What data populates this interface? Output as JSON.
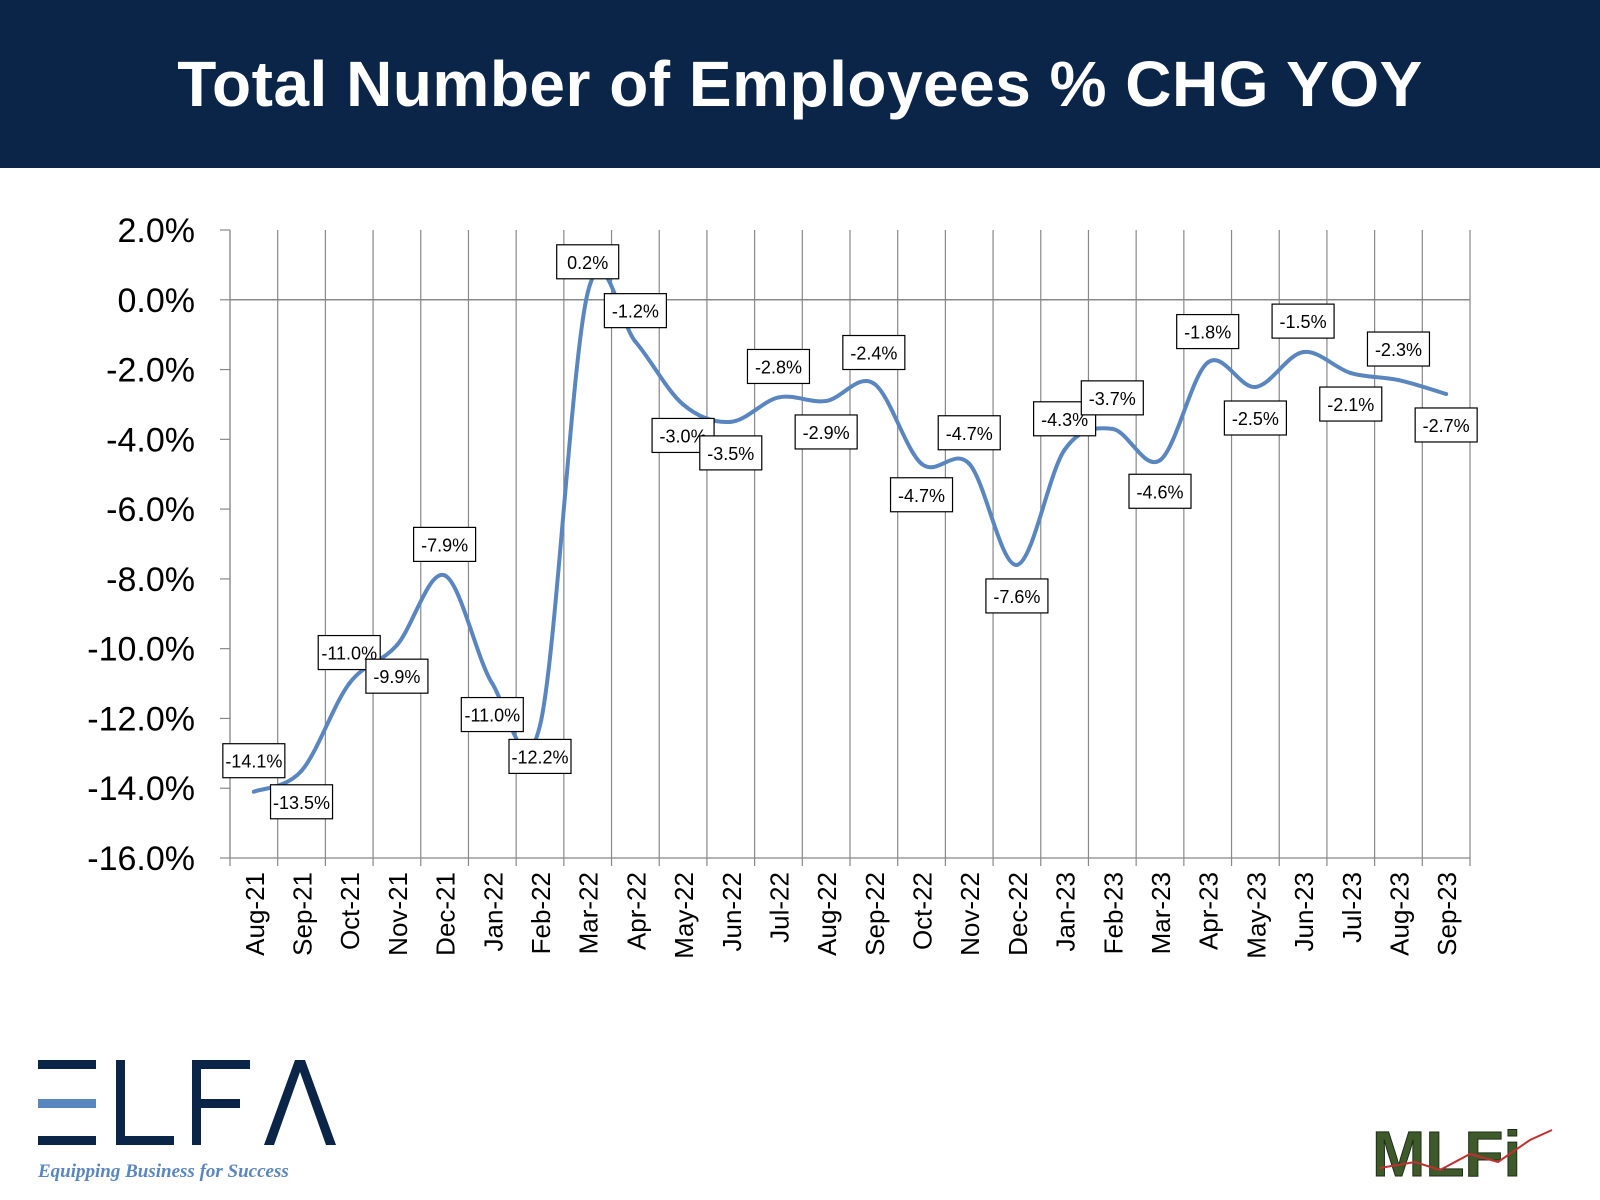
{
  "header": {
    "title": "Total Number of Employees % CHG YOY"
  },
  "chart_data": {
    "type": "line",
    "title": "Total Number of Employees % CHG YOY",
    "xlabel": "",
    "ylabel": "",
    "ylim": [
      -16.0,
      2.0
    ],
    "yticks": [
      "2.0%",
      "0.0%",
      "-2.0%",
      "-4.0%",
      "-6.0%",
      "-8.0%",
      "-10.0%",
      "-12.0%",
      "-14.0%",
      "-16.0%"
    ],
    "categories": [
      "Aug-21",
      "Sep-21",
      "Oct-21",
      "Nov-21",
      "Dec-21",
      "Jan-22",
      "Feb-22",
      "Mar-22",
      "Apr-22",
      "May-22",
      "Jun-22",
      "Jul-22",
      "Aug-22",
      "Sep-22",
      "Oct-22",
      "Nov-22",
      "Dec-22",
      "Jan-23",
      "Feb-23",
      "Mar-23",
      "Apr-23",
      "May-23",
      "Jun-23",
      "Jul-23",
      "Aug-23",
      "Sep-23"
    ],
    "values": [
      -14.1,
      -13.5,
      -11.0,
      -9.9,
      -7.9,
      -11.0,
      -12.2,
      0.2,
      -1.2,
      -3.0,
      -3.5,
      -2.8,
      -2.9,
      -2.4,
      -4.7,
      -4.7,
      -7.6,
      -4.3,
      -3.7,
      -4.6,
      -1.8,
      -2.5,
      -1.5,
      -2.1,
      -2.3,
      -2.7
    ],
    "data_labels": [
      "-14.1%",
      "-13.5%",
      "-11.0%",
      "-9.9%",
      "-7.9%",
      "-11.0%",
      "-12.2%",
      "0.2%",
      "-1.2%",
      "-3.0%",
      "-3.5%",
      "-2.8%",
      "-2.9%",
      "-2.4%",
      "-4.7%",
      "-4.7%",
      "-7.6%",
      "-4.3%",
      "-3.7%",
      "-4.6%",
      "-1.8%",
      "-2.5%",
      "-1.5%",
      "-2.1%",
      "-2.3%",
      "-2.7%"
    ],
    "grid": {
      "vertical": true,
      "horizontal": false
    },
    "legend": "none",
    "colors": {
      "line": "#5a86c0",
      "grid": "#888888",
      "zero_line": "#888888"
    }
  },
  "logos": {
    "elfa": {
      "text": "ELFA",
      "tagline": "Equipping Business for Success",
      "color": "#0b2549",
      "accent": "#5a86c0"
    },
    "mlfi": {
      "text": "MLFi",
      "color": "#3e5a2a"
    }
  }
}
